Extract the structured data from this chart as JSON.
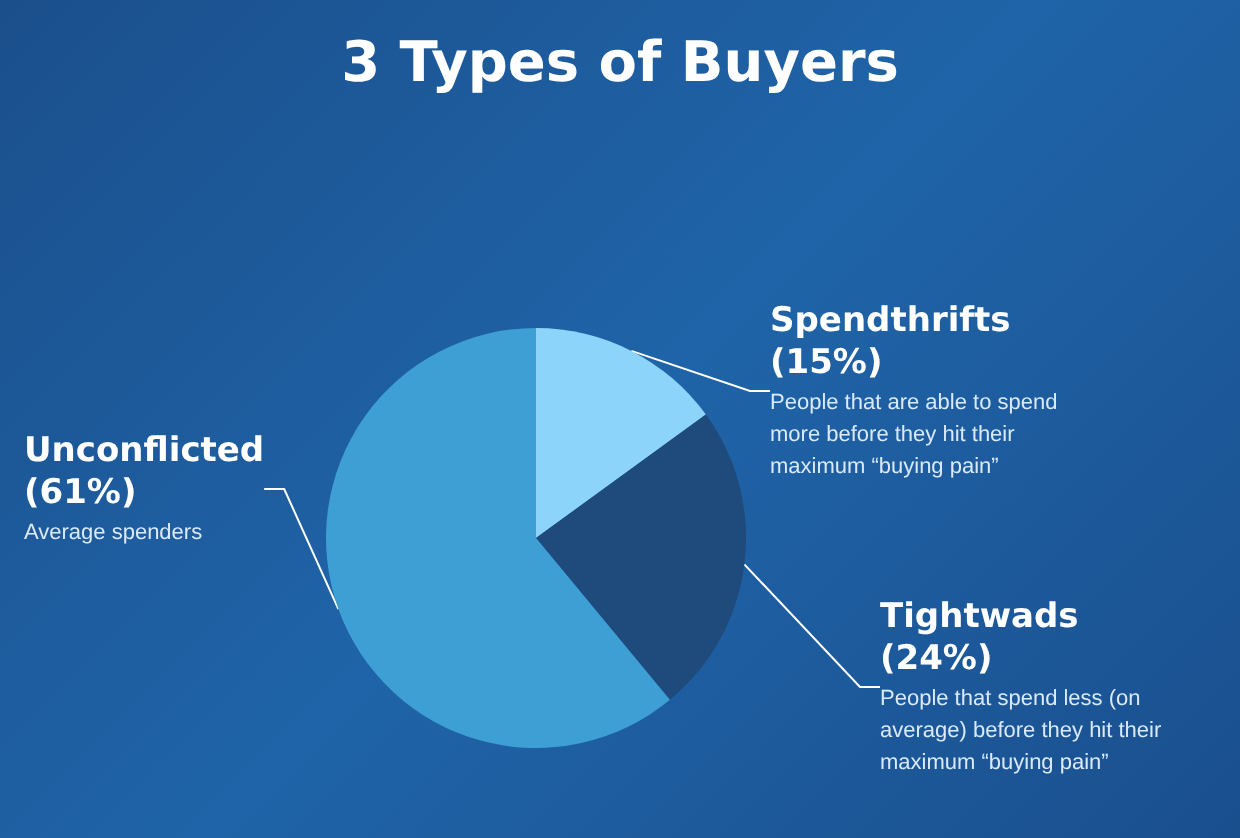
{
  "chart_data": {
    "type": "pie",
    "title": "3 Types of Buyers",
    "categories": [
      "Spendthrifts",
      "Tightwads",
      "Unconflicted"
    ],
    "values": [
      15,
      24,
      61
    ],
    "value_labels": [
      "(15%)",
      "(24%)",
      "(61%)"
    ],
    "colors": [
      "#8dd4fb",
      "#1e4a7c",
      "#3e9fd4"
    ],
    "annotations": [
      "People that are able to spend\nmore before they hit their\nmaximum “buying pain”",
      "People that spend less (on\naverage) before they hit their\nmaximum “buying pain”",
      "Average spenders"
    ],
    "legend": false
  }
}
